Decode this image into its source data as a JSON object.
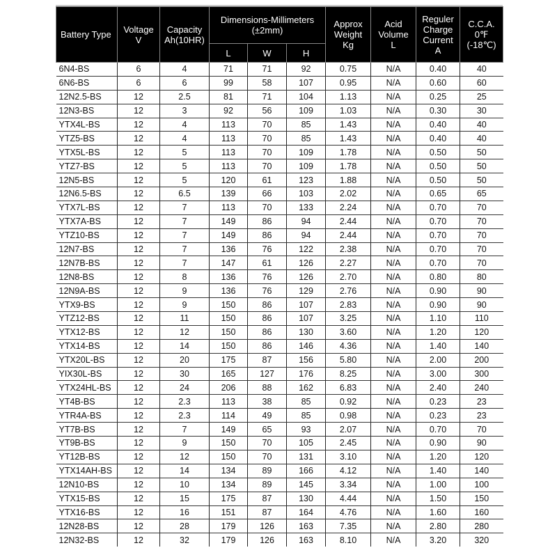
{
  "header": {
    "battery_type": "Battery Type",
    "voltage": [
      "Voltage",
      "V"
    ],
    "capacity": [
      "Capacity",
      "Ah(10HR)"
    ],
    "dimensions": [
      "Dimensions-Millimeters",
      "(±2mm)"
    ],
    "dim_l": "L",
    "dim_w": "W",
    "dim_h": "H",
    "weight": [
      "Approx",
      "Weight",
      "Kg"
    ],
    "acid": [
      "Acid",
      "Volume",
      "L"
    ],
    "charge": [
      "Reguler",
      "Charge",
      "Current",
      "A"
    ],
    "cca": [
      "C.C.A.",
      "0℉",
      "(-18℃)"
    ]
  },
  "rows": [
    [
      "6N4-BS",
      "6",
      "4",
      "71",
      "71",
      "92",
      "0.75",
      "N/A",
      "0.40",
      "40"
    ],
    [
      "6N6-BS",
      "6",
      "6",
      "99",
      "58",
      "107",
      "0.95",
      "N/A",
      "0.60",
      "60"
    ],
    [
      "12N2.5-BS",
      "12",
      "2.5",
      "81",
      "71",
      "104",
      "1.13",
      "N/A",
      "0.25",
      "25"
    ],
    [
      "12N3-BS",
      "12",
      "3",
      "92",
      "56",
      "109",
      "1.03",
      "N/A",
      "0.30",
      "30"
    ],
    [
      "YTX4L-BS",
      "12",
      "4",
      "113",
      "70",
      "85",
      "1.43",
      "N/A",
      "0.40",
      "40"
    ],
    [
      "YTZ5-BS",
      "12",
      "4",
      "113",
      "70",
      "85",
      "1.43",
      "N/A",
      "0.40",
      "40"
    ],
    [
      "YTX5L-BS",
      "12",
      "5",
      "113",
      "70",
      "109",
      "1.78",
      "N/A",
      "0.50",
      "50"
    ],
    [
      "YTZ7-BS",
      "12",
      "5",
      "113",
      "70",
      "109",
      "1.78",
      "N/A",
      "0.50",
      "50"
    ],
    [
      "12N5-BS",
      "12",
      "5",
      "120",
      "61",
      "123",
      "1.88",
      "N/A",
      "0.50",
      "50"
    ],
    [
      "12N6.5-BS",
      "12",
      "6.5",
      "139",
      "66",
      "103",
      "2.02",
      "N/A",
      "0.65",
      "65"
    ],
    [
      "YTX7L-BS",
      "12",
      "7",
      "113",
      "70",
      "133",
      "2.24",
      "N/A",
      "0.70",
      "70"
    ],
    [
      "YTX7A-BS",
      "12",
      "7",
      "149",
      "86",
      "94",
      "2.44",
      "N/A",
      "0.70",
      "70"
    ],
    [
      "YTZ10-BS",
      "12",
      "7",
      "149",
      "86",
      "94",
      "2.44",
      "N/A",
      "0.70",
      "70"
    ],
    [
      "12N7-BS",
      "12",
      "7",
      "136",
      "76",
      "122",
      "2.38",
      "N/A",
      "0.70",
      "70"
    ],
    [
      "12N7B-BS",
      "12",
      "7",
      "147",
      "61",
      "126",
      "2.27",
      "N/A",
      "0.70",
      "70"
    ],
    [
      "12N8-BS",
      "12",
      "8",
      "136",
      "76",
      "126",
      "2.70",
      "N/A",
      "0.80",
      "80"
    ],
    [
      "12N9A-BS",
      "12",
      "9",
      "136",
      "76",
      "129",
      "2.76",
      "N/A",
      "0.90",
      "90"
    ],
    [
      "YTX9-BS",
      "12",
      "9",
      "150",
      "86",
      "107",
      "2.83",
      "N/A",
      "0.90",
      "90"
    ],
    [
      "YTZ12-BS",
      "12",
      "11",
      "150",
      "86",
      "107",
      "3.25",
      "N/A",
      "1.10",
      "110"
    ],
    [
      "YTX12-BS",
      "12",
      "12",
      "150",
      "86",
      "130",
      "3.60",
      "N/A",
      "1.20",
      "120"
    ],
    [
      "YTX14-BS",
      "12",
      "14",
      "150",
      "86",
      "146",
      "4.36",
      "N/A",
      "1.40",
      "140"
    ],
    [
      "YTX20L-BS",
      "12",
      "20",
      "175",
      "87",
      "156",
      "5.80",
      "N/A",
      "2.00",
      "200"
    ],
    [
      "YIX30L-BS",
      "12",
      "30",
      "165",
      "127",
      "176",
      "8.25",
      "N/A",
      "3.00",
      "300"
    ],
    [
      "YTX24HL-BS",
      "12",
      "24",
      "206",
      "88",
      "162",
      "6.83",
      "N/A",
      "2.40",
      "240"
    ],
    [
      "YT4B-BS",
      "12",
      "2.3",
      "113",
      "38",
      "85",
      "0.92",
      "N/A",
      "0.23",
      "23"
    ],
    [
      "YTR4A-BS",
      "12",
      "2.3",
      "114",
      "49",
      "85",
      "0.98",
      "N/A",
      "0.23",
      "23"
    ],
    [
      "YT7B-BS",
      "12",
      "7",
      "149",
      "65",
      "93",
      "2.07",
      "N/A",
      "0.70",
      "70"
    ],
    [
      "YT9B-BS",
      "12",
      "9",
      "150",
      "70",
      "105",
      "2.45",
      "N/A",
      "0.90",
      "90"
    ],
    [
      "YT12B-BS",
      "12",
      "12",
      "150",
      "70",
      "131",
      "3.10",
      "N/A",
      "1.20",
      "120"
    ],
    [
      "YTX14AH-BS",
      "12",
      "14",
      "134",
      "89",
      "166",
      "4.12",
      "N/A",
      "1.40",
      "140"
    ],
    [
      "12N10-BS",
      "12",
      "10",
      "134",
      "89",
      "145",
      "3.34",
      "N/A",
      "1.00",
      "100"
    ],
    [
      "YTX15-BS",
      "12",
      "15",
      "175",
      "87",
      "130",
      "4.44",
      "N/A",
      "1.50",
      "150"
    ],
    [
      "YTX16-BS",
      "12",
      "16",
      "151",
      "87",
      "164",
      "4.76",
      "N/A",
      "1.60",
      "160"
    ],
    [
      "12N28-BS",
      "12",
      "28",
      "179",
      "126",
      "163",
      "7.35",
      "N/A",
      "2.80",
      "280"
    ],
    [
      "12N32-BS",
      "12",
      "32",
      "179",
      "126",
      "163",
      "8.10",
      "N/A",
      "3.20",
      "320"
    ]
  ]
}
